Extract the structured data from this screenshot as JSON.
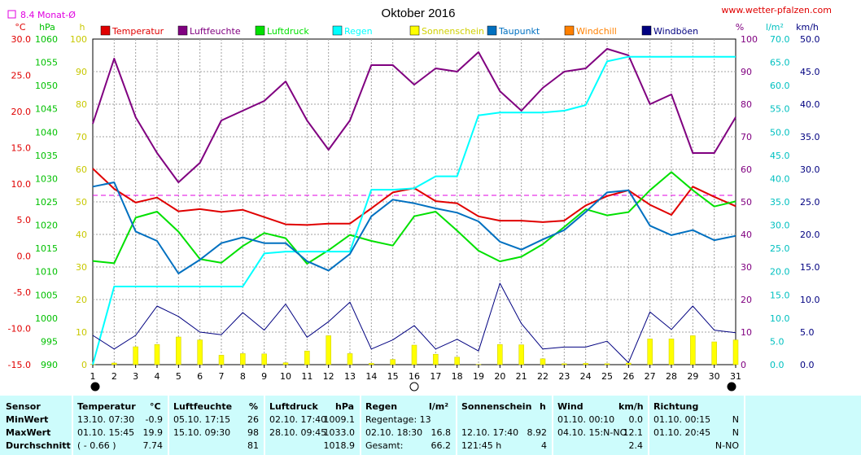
{
  "header": {
    "title": "Oktober 2016",
    "website": "www.wetter-pfalzen.com",
    "monthly_avg_label": "8.4 Monat-Ø"
  },
  "units": {
    "temp": "°C",
    "pressure": "hPa",
    "sun": "h",
    "humidity": "%",
    "rain": "l/m²",
    "wind": "km/h"
  },
  "legend": [
    {
      "label": "Temperatur",
      "color": "#e00000"
    },
    {
      "label": "Luftfeuchte",
      "color": "#800080"
    },
    {
      "label": "Luftdruck",
      "color": "#00e000"
    },
    {
      "label": "Regen",
      "color": "#00ffff"
    },
    {
      "label": "Sonnenschein",
      "color": "#ffff00"
    },
    {
      "label": "Taupunkt",
      "color": "#0070c0"
    },
    {
      "label": "Windchill",
      "color": "#ff8000"
    },
    {
      "label": "Windböen",
      "color": "#000080"
    }
  ],
  "chart_data": {
    "type": "line",
    "title": "Oktober 2016",
    "x": [
      1,
      2,
      3,
      4,
      5,
      6,
      7,
      8,
      9,
      10,
      11,
      12,
      13,
      14,
      15,
      16,
      17,
      18,
      19,
      20,
      21,
      22,
      23,
      24,
      25,
      26,
      27,
      28,
      29,
      30,
      31
    ],
    "xlim": [
      1,
      31
    ],
    "grid": true,
    "legend_position": "top",
    "monthly_avg_temperature": 8.4,
    "axes": {
      "temp": {
        "unit": "°C",
        "range": [
          -15,
          30
        ],
        "ticks": [
          "30.0",
          "25.0",
          "20.0",
          "15.0",
          "10.0",
          "5.0",
          "0.0",
          "-5.0",
          "-10.0",
          "-15.0"
        ]
      },
      "pressure": {
        "unit": "hPa",
        "range": [
          990,
          1060
        ],
        "ticks": [
          "1060",
          "1055",
          "1050",
          "1045",
          "1040",
          "1035",
          "1030",
          "1025",
          "1020",
          "1015",
          "1010",
          "1005",
          "1000",
          "995",
          "990"
        ]
      },
      "sun": {
        "unit": "h",
        "range": [
          0,
          100
        ],
        "ticks": [
          "100",
          "90",
          "80",
          "70",
          "60",
          "50",
          "40",
          "30",
          "20",
          "10",
          "0"
        ]
      },
      "humidity": {
        "unit": "%",
        "range": [
          0,
          100
        ],
        "ticks": [
          "100",
          "90",
          "80",
          "70",
          "60",
          "50",
          "40",
          "30",
          "20",
          "10",
          "0"
        ]
      },
      "rain": {
        "unit": "l/m²",
        "range": [
          0,
          70
        ],
        "ticks": [
          "70.0",
          "65.0",
          "60.0",
          "55.0",
          "50.0",
          "45.0",
          "40.0",
          "35.0",
          "30.0",
          "25.0",
          "20.0",
          "15.0",
          "10.0",
          "5.0",
          "0.0"
        ]
      },
      "wind": {
        "unit": "km/h",
        "range": [
          0,
          50
        ],
        "ticks": [
          "50.0",
          "45.0",
          "40.0",
          "35.0",
          "30.0",
          "25.0",
          "20.0",
          "15.0",
          "10.0",
          "5.0",
          "0.0"
        ]
      }
    },
    "series": [
      {
        "name": "Temperatur",
        "axis": "temp",
        "color": "#e00000",
        "values": [
          12.1,
          9.3,
          7.4,
          8.1,
          6.2,
          6.5,
          6.1,
          6.4,
          5.4,
          4.4,
          4.3,
          4.5,
          4.5,
          6.6,
          8.8,
          9.4,
          7.6,
          7.3,
          5.5,
          4.9,
          4.9,
          4.7,
          4.9,
          7.0,
          8.3,
          9.1,
          7.1,
          5.7,
          9.6,
          8.2,
          6.9
        ]
      },
      {
        "name": "Luftfeuchte",
        "axis": "humidity",
        "color": "#800080",
        "values": [
          74,
          94,
          76,
          65,
          56,
          62,
          75,
          78,
          81,
          87,
          75,
          66,
          75,
          92,
          92,
          86,
          91,
          90,
          96,
          84,
          78,
          85,
          90,
          91,
          97,
          95,
          80,
          83,
          65,
          65,
          76
        ]
      },
      {
        "name": "Luftdruck",
        "axis": "pressure",
        "color": "#00e000",
        "values": [
          1012.3,
          1011.8,
          1021.6,
          1022.9,
          1018.6,
          1012.7,
          1011.9,
          1015.5,
          1018.3,
          1017.2,
          1011.7,
          1014.6,
          1017.9,
          1016.6,
          1015.6,
          1021.9,
          1022.9,
          1018.8,
          1014.5,
          1012.2,
          1013.2,
          1015.9,
          1019.6,
          1023.4,
          1022.1,
          1022.8,
          1027.5,
          1031.4,
          1027.5,
          1024.0,
          1025.1
        ]
      },
      {
        "name": "Regen",
        "axis": "rain",
        "color": "#00ffff",
        "values": [
          0,
          16.8,
          16.8,
          16.8,
          16.8,
          16.8,
          16.8,
          16.8,
          23.9,
          24.3,
          24.3,
          24.3,
          24.3,
          37.6,
          37.6,
          37.9,
          40.5,
          40.5,
          53.6,
          54.2,
          54.2,
          54.2,
          54.6,
          55.8,
          65.2,
          66.2,
          66.2,
          66.2,
          66.2,
          66.2,
          66.2
        ]
      },
      {
        "name": "Taupunkt",
        "axis": "temp",
        "color": "#0070c0",
        "values": [
          9.6,
          10.2,
          3.4,
          2.1,
          -2.4,
          -0.5,
          1.8,
          2.6,
          1.8,
          1.8,
          -0.7,
          -2.0,
          0.3,
          5.5,
          7.8,
          7.3,
          6.6,
          6.0,
          4.8,
          2.0,
          0.9,
          2.3,
          3.6,
          6.1,
          8.8,
          9.1,
          4.2,
          2.9,
          3.6,
          2.2,
          2.8
        ]
      },
      {
        "name": "Windböen",
        "axis": "wind",
        "color": "#000080",
        "values": [
          4.5,
          2.4,
          4.5,
          9.0,
          7.4,
          5.0,
          4.6,
          8.0,
          5.3,
          9.3,
          4.2,
          6.6,
          9.6,
          2.4,
          3.8,
          6.0,
          2.4,
          3.9,
          2.1,
          12.5,
          6.3,
          2.4,
          2.7,
          2.7,
          3.6,
          0.3,
          8.1,
          5.4,
          9.0,
          5.3,
          4.9
        ]
      },
      {
        "name": "Sonnenschein",
        "axis": "sun",
        "color": "#ffff00",
        "type": "bar",
        "values": [
          0.1,
          0.5,
          5.5,
          6.2,
          8.5,
          7.6,
          2.9,
          3.4,
          3.3,
          0.6,
          4.2,
          8.9,
          3.4,
          0.4,
          1.6,
          6.0,
          3.2,
          2.3,
          0.1,
          6.2,
          6.1,
          1.8,
          0.3,
          0.4,
          0.3,
          0.5,
          7.9,
          7.9,
          8.9,
          7.0,
          7.6
        ]
      }
    ],
    "bottom_markers": [
      {
        "x": 1,
        "symbol": "full moon"
      },
      {
        "x": 16,
        "symbol": "new moon"
      },
      {
        "x": 31,
        "symbol": "full moon"
      }
    ]
  },
  "stats": {
    "rows": [
      "Sensor",
      "MinWert",
      "MaxWert",
      "Durchschnitt"
    ],
    "temperature": {
      "header": "Temperatur",
      "unit": "°C",
      "min_time": "13.10.  07:30",
      "min_val": "-0.9",
      "max_time": "01.10.  15:45",
      "max_val": "19.9",
      "avg_note": "( - 0.66 )",
      "avg_val": "7.74"
    },
    "humidity": {
      "header": "Luftfeuchte",
      "unit": "%",
      "min_time": "05.10.  17:15",
      "min_val": "26",
      "max_time": "15.10.  09:30",
      "max_val": "98",
      "avg_val": "81"
    },
    "pressure": {
      "header": "Luftdruck",
      "unit": "hPa",
      "min_time": "02.10.  17:40",
      "min_val": "1009.1",
      "max_time": "28.10.  09:45",
      "max_val": "1033.0",
      "avg_val": "1018.9"
    },
    "rain": {
      "header": "Regen",
      "unit": "l/m²",
      "row1": "Regentage: 13",
      "row2_time": "02.10.  18:30",
      "row2_val": "16.8",
      "row3_label": "Gesamt:",
      "row3_val": "66.2"
    },
    "sunshine": {
      "header": "Sonnenschein",
      "unit": "h",
      "max_time": "12.10.  17:40",
      "max_val": "8.92",
      "total": "121:45 h",
      "total_days": "4"
    },
    "wind": {
      "header": "Wind",
      "unit": "km/h",
      "min_time": "01.10.  00:10",
      "min_val": "0.0",
      "max_time": "04.10.  15:N-NO",
      "max_val": "12.1",
      "avg_val": "2.4"
    },
    "direction": {
      "header": "Richtung",
      "min_time": "01.10.  00:15",
      "min_val": "N",
      "max_time": "01.10.  20:45",
      "max_val": "N",
      "avg_val": "N-NO"
    }
  }
}
